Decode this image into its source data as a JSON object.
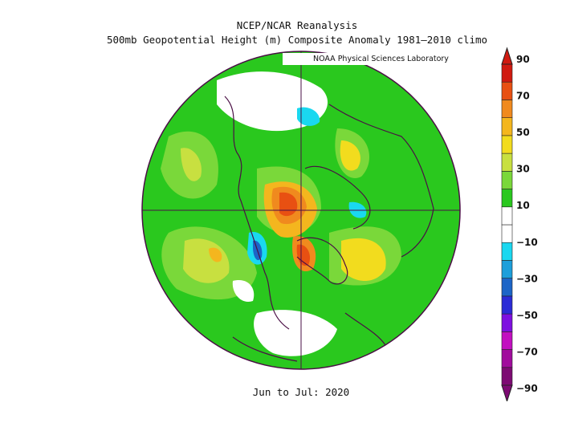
{
  "title": "NCEP/NCAR Reanalysis",
  "subtitle": "500mb Geopotential Height (m) Composite Anomaly 1981—2010 climo",
  "credit": "NOAA Physical Sciences Laboratory",
  "period": "Jun to Jul: 2020",
  "colorbar": {
    "labels": [
      "90",
      "70",
      "50",
      "30",
      "10",
      "−10",
      "−30",
      "−50",
      "−70",
      "−90"
    ],
    "colors": [
      "#7d0a73",
      "#a10b9d",
      "#c20fc0",
      "#7e0fe0",
      "#2b2bd6",
      "#1c65c7",
      "#1c9fdb",
      "#1ad8f0",
      "#ffffff",
      "#ffffff",
      "#2ac81e",
      "#7ad83a",
      "#c8e040",
      "#f2dc1e",
      "#f4b61e",
      "#f08a1e",
      "#e85012",
      "#d01a10"
    ],
    "colors_note_order": "bottom to top"
  }
}
